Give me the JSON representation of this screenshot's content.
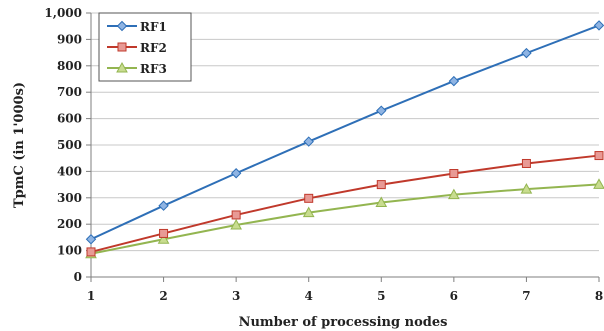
{
  "chart_data": {
    "type": "line",
    "xlabel": "Number of  processing nodes",
    "ylabel": "TpmC (in 1'000s)",
    "x": [
      1,
      2,
      3,
      4,
      5,
      6,
      7,
      8
    ],
    "xlim": [
      1,
      8
    ],
    "ylim": [
      0,
      1000
    ],
    "y_ticks": [
      0,
      100,
      200,
      300,
      400,
      500,
      600,
      700,
      800,
      900,
      1000
    ],
    "y_tick_labels": [
      "0",
      "100",
      "200",
      "300",
      "400",
      "500",
      "600",
      "700",
      "800",
      "900",
      "1,000"
    ],
    "x_tick_labels": [
      "1",
      "2",
      "3",
      "4",
      "5",
      "6",
      "7",
      "8"
    ],
    "grid": "horizontal",
    "legend_position": "top-left",
    "series": [
      {
        "name": "RF1",
        "color": "#2e6fb7",
        "marker": "diamond",
        "marker_fill": "#8fb4e3",
        "values": [
          143,
          270,
          393,
          513,
          630,
          742,
          848,
          953
        ]
      },
      {
        "name": "RF2",
        "color": "#c0392b",
        "marker": "square",
        "marker_fill": "#e89a95",
        "values": [
          95,
          165,
          235,
          298,
          350,
          392,
          430,
          460
        ]
      },
      {
        "name": "RF3",
        "color": "#93b550",
        "marker": "triangle",
        "marker_fill": "#c8dc8f",
        "values": [
          88,
          143,
          197,
          244,
          282,
          312,
          333,
          351
        ]
      }
    ]
  }
}
